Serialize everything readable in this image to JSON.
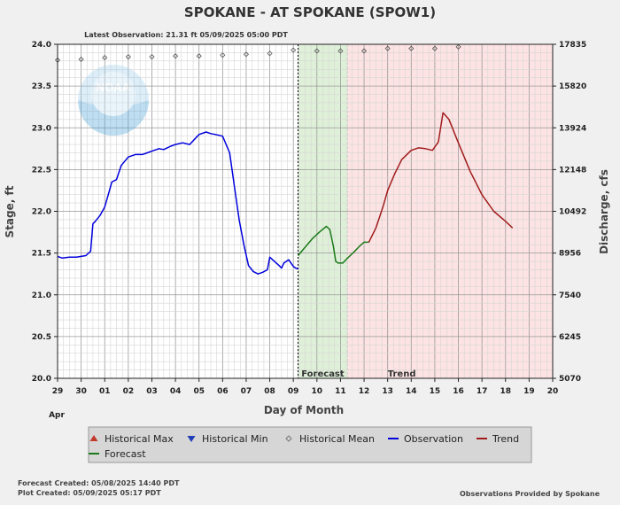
{
  "chart_data": {
    "type": "line",
    "title": "SPOKANE - AT SPOKANE  (SPOW1)",
    "subtitle": "Latest Observation: 21.31 ft 05/09/2025 05:00 PDT",
    "xlabel": "Day of Month",
    "x_month": "Apr",
    "ylabel": "Stage, ft",
    "y2label": "Discharge, cfs",
    "x_ticks": [
      "29",
      "30",
      "01",
      "02",
      "03",
      "04",
      "05",
      "06",
      "07",
      "08",
      "09",
      "10",
      "11",
      "12",
      "13",
      "14",
      "15",
      "16",
      "17",
      "18",
      "19",
      "20"
    ],
    "xlim": [
      29,
      50
    ],
    "ylim": [
      20.0,
      24.0
    ],
    "y_ticks": [
      20.0,
      20.5,
      21.0,
      21.5,
      22.0,
      22.5,
      23.0,
      23.5,
      24.0
    ],
    "y_tick_labels": [
      "20.0",
      "20.5",
      "21.0",
      "21.5",
      "22.0",
      "22.5",
      "23.0",
      "23.5",
      "24.0"
    ],
    "y2_ticks": [
      {
        "stage": 20.0,
        "label": "5070"
      },
      {
        "stage": 20.5,
        "label": "6245"
      },
      {
        "stage": 21.0,
        "label": "7540"
      },
      {
        "stage": 21.5,
        "label": "8956"
      },
      {
        "stage": 22.0,
        "label": "10492"
      },
      {
        "stage": 22.5,
        "label": "12148"
      },
      {
        "stage": 23.0,
        "label": "13924"
      },
      {
        "stage": 23.5,
        "label": "15820"
      },
      {
        "stage": 24.0,
        "label": "17835"
      }
    ],
    "grid": true,
    "regions": [
      {
        "name": "Forecast",
        "label": "Forecast",
        "x_start": 39.2,
        "x_end": 41.3,
        "color": "#dff0d8"
      },
      {
        "name": "Trend",
        "label": "Trend",
        "x_start": 41.3,
        "x_end": 50.0,
        "color": "#fde3e3"
      }
    ],
    "series": [
      {
        "name": "Observation",
        "color": "#0000dd",
        "x": [
          29.0,
          29.2,
          29.5,
          29.8,
          30.0,
          30.2,
          30.4,
          30.5,
          30.6,
          30.8,
          31.0,
          31.2,
          31.3,
          31.5,
          31.7,
          32.0,
          32.3,
          32.6,
          32.8,
          33.0,
          33.3,
          33.5,
          33.8,
          34.0,
          34.3,
          34.6,
          35.0,
          35.3,
          35.5,
          35.7,
          36.0,
          36.3,
          36.5,
          36.7,
          36.9,
          37.1,
          37.3,
          37.5,
          37.7,
          37.9,
          38.0,
          38.2,
          38.4,
          38.5,
          38.6,
          38.8,
          39.0,
          39.1,
          39.2
        ],
        "y": [
          21.46,
          21.44,
          21.45,
          21.45,
          21.46,
          21.47,
          21.52,
          21.85,
          21.88,
          21.95,
          22.05,
          22.25,
          22.35,
          22.38,
          22.55,
          22.65,
          22.68,
          22.68,
          22.7,
          22.72,
          22.75,
          22.74,
          22.78,
          22.8,
          22.82,
          22.8,
          22.92,
          22.95,
          22.93,
          22.92,
          22.9,
          22.7,
          22.3,
          21.9,
          21.6,
          21.35,
          21.28,
          21.25,
          21.27,
          21.3,
          21.45,
          21.4,
          21.35,
          21.32,
          21.38,
          21.42,
          21.34,
          21.32,
          21.31
        ]
      },
      {
        "name": "Forecast",
        "color": "#1a7a1a",
        "x": [
          39.2,
          39.5,
          39.8,
          40.1,
          40.4,
          40.55,
          40.7,
          40.8,
          40.9,
          41.1,
          41.3,
          41.6,
          41.8,
          42.0,
          42.2
        ],
        "y": [
          21.47,
          21.57,
          21.67,
          21.75,
          21.82,
          21.78,
          21.58,
          21.4,
          21.38,
          21.38,
          21.44,
          21.52,
          21.58,
          21.63,
          21.63
        ]
      },
      {
        "name": "Trend",
        "color": "#a01c1c",
        "x": [
          42.2,
          42.5,
          42.8,
          43.0,
          43.3,
          43.6,
          44.0,
          44.3,
          44.6,
          44.9,
          45.15,
          45.35,
          45.6,
          46.0,
          46.5,
          47.0,
          47.5,
          48.0,
          48.3
        ],
        "y": [
          21.63,
          21.8,
          22.05,
          22.25,
          22.45,
          22.62,
          22.73,
          22.76,
          22.75,
          22.73,
          22.83,
          23.18,
          23.1,
          22.82,
          22.48,
          22.2,
          22.0,
          21.88,
          21.8
        ]
      },
      {
        "name": "Historical Mean",
        "color": "#555555",
        "x": [
          29,
          30,
          31,
          32,
          33,
          34,
          35,
          36,
          37,
          38,
          39,
          40,
          41,
          42,
          43,
          44,
          45,
          46
        ],
        "y": [
          23.81,
          23.82,
          23.84,
          23.85,
          23.85,
          23.86,
          23.86,
          23.87,
          23.88,
          23.89,
          23.93,
          23.92,
          23.92,
          23.92,
          23.95,
          23.95,
          23.95,
          23.97
        ]
      }
    ],
    "legend": {
      "placement": "bottom",
      "items": [
        {
          "label": "Historical Max",
          "symbol": "triangle-up",
          "color": "#c0392b"
        },
        {
          "label": "Historical Min",
          "symbol": "triangle-down",
          "color": "#1f3fb8"
        },
        {
          "label": "Historical Mean",
          "symbol": "diamond",
          "color": "#777777"
        },
        {
          "label": "Observation",
          "symbol": "line",
          "color": "#0000dd"
        },
        {
          "label": "Trend",
          "symbol": "line",
          "color": "#a01c1c"
        },
        {
          "label": "Forecast",
          "symbol": "line",
          "color": "#1a7a1a"
        }
      ]
    },
    "footer": {
      "forecast_created": "Forecast Created: 05/08/2025 14:40 PDT",
      "plot_created": "Plot Created: 05/09/2025 05:17 PDT",
      "provided_by": "Observations Provided by Spokane"
    },
    "logo_text": "NOAA"
  }
}
